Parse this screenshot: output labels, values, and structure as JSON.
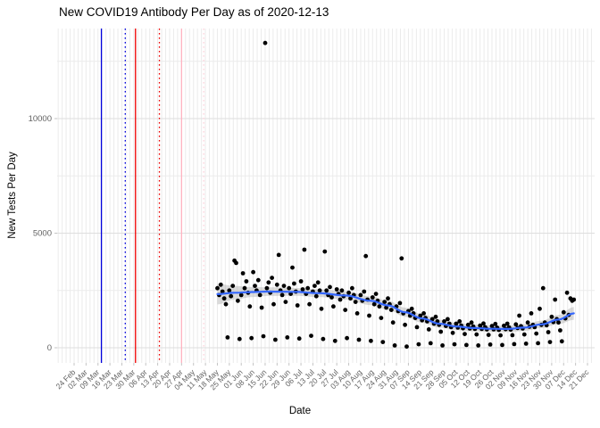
{
  "title": "New COVID19 Antibody Per Day as of 2020-12-13",
  "chart_data": {
    "type": "scatter",
    "title": "New COVID19 Antibody Per Day as of 2020-12-13",
    "xlabel": "Date",
    "ylabel": "New Tests Per Day",
    "grid": true,
    "legend": "none",
    "x_axis": {
      "start_date": "2020-02-24",
      "end_date": "2020-12-21",
      "tick_interval_days": 7,
      "tick_labels": [
        "24 Feb",
        "02 Mar",
        "09 Mar",
        "16 Mar",
        "23 Mar",
        "30 Mar",
        "06 Apr",
        "13 Apr",
        "20 Apr",
        "27 Apr",
        "04 May",
        "11 May",
        "18 May",
        "25 May",
        "01 Jun",
        "08 Jun",
        "15 Jun",
        "22 Jun",
        "29 Jun",
        "06 Jul",
        "13 Jul",
        "20 Jul",
        "27 Jul",
        "03 Aug",
        "10 Aug",
        "17 Aug",
        "24 Aug",
        "31 Aug",
        "07 Sep",
        "14 Sep",
        "21 Sep",
        "28 Sep",
        "05 Oct",
        "12 Oct",
        "19 Oct",
        "26 Oct",
        "02 Nov",
        "09 Nov",
        "16 Nov",
        "23 Nov",
        "30 Nov",
        "07 Dec",
        "14 Dec",
        "21 Dec"
      ]
    },
    "y_axis": {
      "tick_labels": [
        "0",
        "5000",
        "10000"
      ],
      "major_ticks": [
        0,
        5000,
        10000
      ],
      "minor_ticks": [
        2500,
        7500,
        12500
      ],
      "range": [
        -650,
        14100
      ]
    },
    "event_lines": [
      {
        "date": "2020-03-11",
        "color": "#0000dd",
        "style": "solid"
      },
      {
        "date": "2020-03-25",
        "color": "#0000dd",
        "style": "dotted"
      },
      {
        "date": "2020-03-31",
        "color": "#ee0000",
        "style": "solid"
      },
      {
        "date": "2020-04-14",
        "color": "#ee0000",
        "style": "dotted"
      },
      {
        "date": "2020-04-27",
        "color": "#ffb3c1",
        "style": "solid"
      },
      {
        "date": "2020-05-10",
        "color": "#ffd3dc",
        "style": "dotted"
      }
    ],
    "points": {
      "start_date": "2020-05-18",
      "daily_values": [
        2600,
        2300,
        2750,
        2450,
        2150,
        1900,
        450,
        2500,
        2250,
        2700,
        3800,
        3700,
        2050,
        380,
        2300,
        3250,
        2600,
        2900,
        2400,
        1800,
        420,
        3300,
        2700,
        2500,
        2950,
        2300,
        1750,
        500,
        13300,
        2600,
        2850,
        2400,
        3050,
        1900,
        350,
        2750,
        4050,
        2500,
        2300,
        2700,
        2000,
        450,
        2600,
        2350,
        3500,
        2800,
        2450,
        1850,
        400,
        2900,
        2550,
        4280,
        2350,
        2600,
        1900,
        520,
        2450,
        2700,
        2250,
        2850,
        2500,
        1700,
        380,
        4200,
        2500,
        2300,
        2650,
        2200,
        1800,
        300,
        2550,
        2350,
        2100,
        2500,
        2250,
        1650,
        420,
        2400,
        2150,
        2600,
        2300,
        2000,
        1500,
        350,
        2300,
        2050,
        2450,
        4000,
        2100,
        1400,
        300,
        2200,
        1900,
        2350,
        2050,
        1800,
        1300,
        250,
        2000,
        1750,
        2150,
        1900,
        1650,
        1100,
        100,
        1800,
        1600,
        1950,
        3900,
        1500,
        1000,
        50,
        1600,
        1400,
        1700,
        1500,
        1300,
        900,
        150,
        1400,
        1200,
        1500,
        1300,
        1150,
        800,
        200,
        1250,
        1050,
        1350,
        1150,
        1000,
        700,
        100,
        1150,
        950,
        1250,
        1050,
        900,
        650,
        150,
        1050,
        880,
        1150,
        970,
        850,
        600,
        120,
        1000,
        840,
        1100,
        930,
        820,
        580,
        100,
        970,
        820,
        1060,
        900,
        800,
        560,
        140,
        950,
        800,
        1040,
        880,
        780,
        540,
        120,
        960,
        810,
        1050,
        890,
        790,
        550,
        160,
        1020,
        860,
        1400,
        940,
        840,
        580,
        180,
        1100,
        920,
        1500,
        1000,
        900,
        620,
        200,
        1700,
        1000,
        2600,
        1100,
        980,
        680,
        250,
        1350,
        1120,
        2100,
        1250,
        1100,
        760,
        280,
        1550,
        1280,
        2400,
        1430,
        2150,
        2050,
        2100
      ]
    },
    "smooth": {
      "note": "LOESS trend line with confidence ribbon",
      "days_from_point_start": [
        0,
        10,
        20,
        30,
        45,
        60,
        75,
        90,
        100,
        110,
        120,
        130,
        140,
        150,
        160,
        170,
        180,
        190,
        200,
        209
      ],
      "values": [
        2340,
        2400,
        2430,
        2450,
        2440,
        2380,
        2280,
        2050,
        1850,
        1550,
        1280,
        1050,
        930,
        860,
        830,
        820,
        880,
        1020,
        1230,
        1500
      ],
      "ribbon_half_width": [
        450,
        300,
        220,
        190,
        170,
        170,
        180,
        190,
        200,
        200,
        190,
        170,
        155,
        145,
        140,
        140,
        145,
        160,
        200,
        280
      ]
    },
    "colors": {
      "point": "#000000",
      "smooth_line": "#3366ff",
      "ribbon": "#999999",
      "grid_major": "#dedede",
      "grid_minor": "#ebebeb",
      "axis_text": "#636363",
      "tick_mark": "#c4c4c4",
      "background": "#ffffff"
    }
  }
}
